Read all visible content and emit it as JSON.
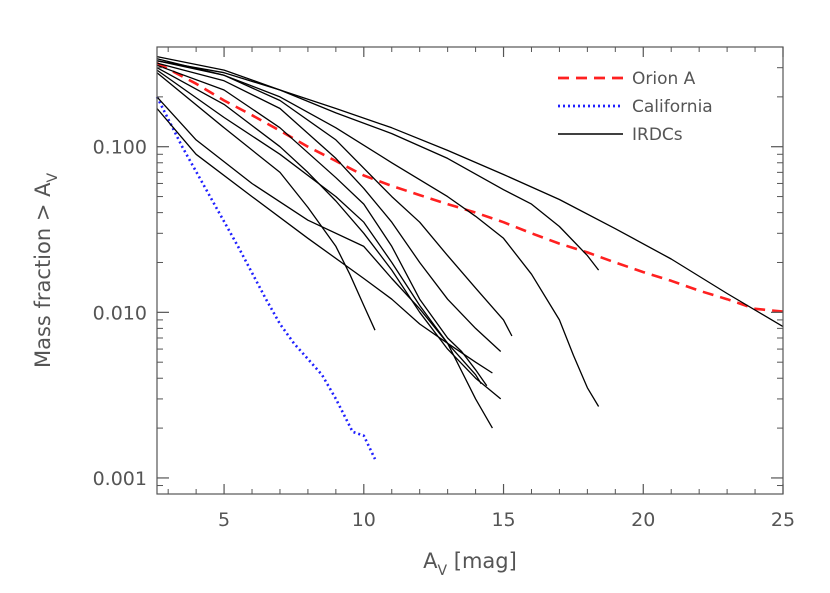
{
  "chart_data": {
    "type": "line",
    "xlabel": {
      "main": "A",
      "sub": "V",
      "rest": " [mag]"
    },
    "ylabel": {
      "main": "Mass fraction > A",
      "sub": "V"
    },
    "xlim": [
      2.6,
      25
    ],
    "ylim": [
      0.0008,
      0.4
    ],
    "yscale": "log",
    "xticks": [
      5,
      10,
      15,
      20,
      25
    ],
    "xtick_labels": [
      "5",
      "10",
      "15",
      "20",
      "25"
    ],
    "yticks": [
      0.001,
      0.01,
      0.1
    ],
    "ytick_labels": [
      "0.001",
      "0.010",
      "0.100"
    ],
    "legend_position": "top-right",
    "series": [
      {
        "name": "Orion A",
        "color": "#ff2020",
        "style": "dashed",
        "x": [
          2.6,
          4,
          5,
          6,
          7,
          8,
          9,
          10,
          11,
          12,
          13,
          14,
          15,
          16,
          17,
          18,
          19,
          20,
          21,
          22,
          23,
          24,
          25
        ],
        "y": [
          0.32,
          0.24,
          0.19,
          0.155,
          0.125,
          0.1,
          0.082,
          0.067,
          0.058,
          0.051,
          0.045,
          0.04,
          0.035,
          0.03,
          0.026,
          0.023,
          0.02,
          0.0175,
          0.0155,
          0.0135,
          0.012,
          0.0105,
          0.0101
        ]
      },
      {
        "name": "California",
        "color": "#2020ff",
        "style": "dotted",
        "x": [
          2.6,
          3.5,
          4.5,
          5.5,
          6.5,
          7,
          7.5,
          8.5,
          9,
          9.6,
          10,
          10.4
        ],
        "y": [
          0.2,
          0.1,
          0.05,
          0.025,
          0.012,
          0.0085,
          0.0065,
          0.0042,
          0.003,
          0.0019,
          0.0018,
          0.0013
        ]
      },
      {
        "name": "IRDCs",
        "color": "#000000",
        "style": "solid",
        "x": [
          2.6,
          5,
          7,
          9,
          11,
          13,
          15,
          17,
          19,
          21,
          23,
          25
        ],
        "y": [
          0.33,
          0.28,
          0.22,
          0.17,
          0.13,
          0.095,
          0.068,
          0.048,
          0.032,
          0.021,
          0.013,
          0.0082
        ]
      },
      {
        "name": "",
        "color": "#000000",
        "style": "solid",
        "x": [
          2.6,
          5,
          7,
          9,
          11,
          13,
          15,
          16,
          17,
          18,
          18.4
        ],
        "y": [
          0.35,
          0.29,
          0.22,
          0.16,
          0.12,
          0.085,
          0.055,
          0.045,
          0.033,
          0.022,
          0.018
        ]
      },
      {
        "name": "",
        "color": "#000000",
        "style": "solid",
        "x": [
          2.6,
          5,
          7,
          9,
          11,
          13,
          14,
          15,
          16,
          17,
          17.5,
          18,
          18.4
        ],
        "y": [
          0.34,
          0.27,
          0.2,
          0.13,
          0.08,
          0.05,
          0.038,
          0.028,
          0.017,
          0.009,
          0.0055,
          0.0035,
          0.0027
        ]
      },
      {
        "name": "",
        "color": "#000000",
        "style": "solid",
        "x": [
          2.6,
          5,
          7,
          9,
          11,
          12,
          13,
          14,
          15,
          15.3
        ],
        "y": [
          0.33,
          0.27,
          0.19,
          0.11,
          0.05,
          0.035,
          0.022,
          0.014,
          0.009,
          0.0072
        ]
      },
      {
        "name": "",
        "color": "#000000",
        "style": "solid",
        "x": [
          2.6,
          5,
          7,
          9,
          10,
          11,
          12,
          13,
          14,
          14.9
        ],
        "y": [
          0.32,
          0.25,
          0.17,
          0.085,
          0.056,
          0.035,
          0.02,
          0.012,
          0.008,
          0.0058
        ]
      },
      {
        "name": "",
        "color": "#000000",
        "style": "solid",
        "x": [
          2.6,
          5,
          7,
          9,
          10,
          11,
          12,
          13,
          13.5,
          14,
          14.4
        ],
        "y": [
          0.31,
          0.22,
          0.13,
          0.065,
          0.045,
          0.025,
          0.012,
          0.007,
          0.0058,
          0.0045,
          0.0036
        ]
      },
      {
        "name": "",
        "color": "#000000",
        "style": "solid",
        "x": [
          2.6,
          5,
          7,
          8,
          9,
          10,
          11,
          12,
          13,
          14,
          14.9
        ],
        "y": [
          0.3,
          0.18,
          0.1,
          0.07,
          0.047,
          0.03,
          0.018,
          0.01,
          0.006,
          0.004,
          0.003
        ]
      },
      {
        "name": "",
        "color": "#000000",
        "style": "solid",
        "x": [
          2.6,
          5,
          7,
          9,
          10,
          11,
          12,
          13,
          14,
          14.6
        ],
        "y": [
          0.29,
          0.15,
          0.09,
          0.05,
          0.035,
          0.02,
          0.011,
          0.0065,
          0.003,
          0.002
        ]
      },
      {
        "name": "",
        "color": "#000000",
        "style": "solid",
        "x": [
          2.6,
          5,
          7,
          8,
          9,
          9.5,
          10,
          10.4
        ],
        "y": [
          0.28,
          0.13,
          0.07,
          0.043,
          0.025,
          0.017,
          0.011,
          0.0078
        ]
      },
      {
        "name": "",
        "color": "#000000",
        "style": "solid",
        "x": [
          2.6,
          4,
          6,
          8,
          10,
          11,
          12,
          13,
          14,
          14.2
        ],
        "y": [
          0.2,
          0.11,
          0.06,
          0.036,
          0.025,
          0.016,
          0.0105,
          0.0065,
          0.0042,
          0.0037
        ]
      },
      {
        "name": "",
        "color": "#000000",
        "style": "solid",
        "x": [
          2.6,
          4,
          6,
          8,
          10,
          11,
          12,
          13,
          14,
          14.6
        ],
        "y": [
          0.17,
          0.09,
          0.05,
          0.028,
          0.016,
          0.012,
          0.0085,
          0.0065,
          0.005,
          0.0043
        ]
      }
    ]
  }
}
